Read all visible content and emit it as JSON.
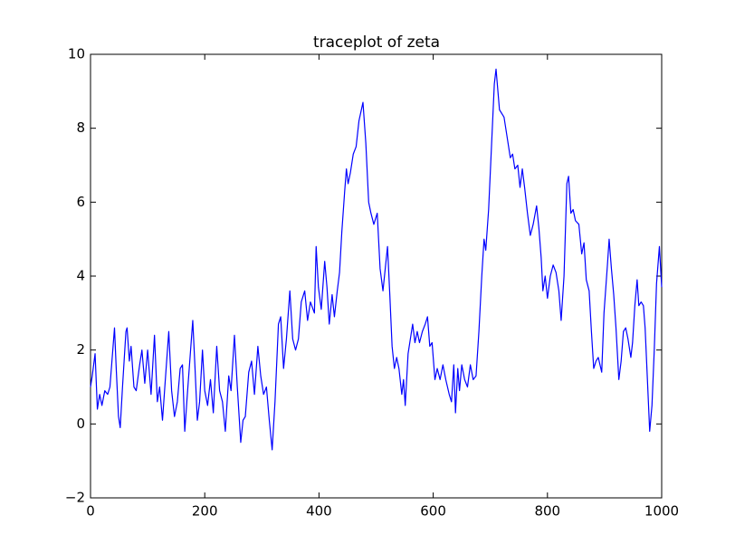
{
  "chart_data": {
    "type": "line",
    "title": "traceplot of zeta",
    "color": "#0000ff",
    "x": [
      0,
      3,
      8,
      12,
      16,
      20,
      25,
      30,
      34,
      42,
      45,
      49,
      52,
      56,
      62,
      64,
      68,
      71,
      76,
      80,
      86,
      90,
      95,
      100,
      106,
      112,
      117,
      121,
      126,
      131,
      137,
      142,
      147,
      152,
      157,
      161,
      165,
      170,
      179,
      183,
      187,
      191,
      196,
      200,
      205,
      210,
      215,
      221,
      226,
      231,
      236,
      242,
      246,
      252,
      257,
      263,
      267,
      271,
      277,
      282,
      287,
      293,
      298,
      303,
      308,
      313,
      318,
      323,
      329,
      333,
      338,
      343,
      349,
      354,
      359,
      364,
      369,
      375,
      380,
      385,
      392,
      395,
      399,
      404,
      410,
      414,
      418,
      423,
      427,
      432,
      436,
      440,
      445,
      448,
      451,
      455,
      460,
      465,
      470,
      477,
      482,
      487,
      491,
      496,
      502,
      507,
      512,
      516,
      520,
      524,
      528,
      532,
      536,
      540,
      545,
      548,
      551,
      556,
      564,
      568,
      572,
      576,
      581,
      586,
      590,
      594,
      598,
      603,
      607,
      612,
      617,
      622,
      628,
      632,
      636,
      639,
      643,
      646,
      650,
      655,
      660,
      665,
      670,
      675,
      680,
      685,
      689,
      692,
      697,
      702,
      707,
      710,
      716,
      724,
      729,
      735,
      739,
      743,
      748,
      752,
      756,
      760,
      765,
      770,
      775,
      781,
      785,
      789,
      792,
      796,
      800,
      805,
      810,
      815,
      820,
      824,
      829,
      834,
      837,
      841,
      845,
      849,
      855,
      860,
      864,
      868,
      873,
      877,
      881,
      885,
      889,
      892,
      895,
      899,
      905,
      908,
      912,
      916,
      920,
      925,
      929,
      933,
      937,
      941,
      946,
      949,
      953,
      957,
      960,
      964,
      968,
      971,
      975,
      979,
      983,
      987,
      991,
      996,
      1000
    ],
    "values": [
      1.0,
      1.3,
      1.9,
      0.4,
      0.8,
      0.5,
      0.9,
      0.8,
      1.0,
      2.6,
      1.5,
      0.2,
      -0.1,
      1.0,
      2.5,
      2.6,
      1.7,
      2.1,
      1.0,
      0.9,
      1.6,
      2.0,
      1.1,
      2.0,
      0.8,
      2.4,
      0.6,
      1.0,
      0.1,
      1.2,
      2.5,
      0.9,
      0.2,
      0.6,
      1.5,
      1.6,
      -0.2,
      0.9,
      2.8,
      1.5,
      0.1,
      0.6,
      2.0,
      0.9,
      0.5,
      1.2,
      0.3,
      2.1,
      0.9,
      0.6,
      -0.2,
      1.3,
      0.9,
      2.4,
      1.0,
      -0.5,
      0.1,
      0.2,
      1.4,
      1.7,
      0.8,
      2.1,
      1.3,
      0.8,
      1.0,
      0.1,
      -0.7,
      0.6,
      2.7,
      2.9,
      1.5,
      2.3,
      3.6,
      2.3,
      2.0,
      2.3,
      3.3,
      3.6,
      2.8,
      3.3,
      3.0,
      4.8,
      3.7,
      3.1,
      4.4,
      3.7,
      2.7,
      3.5,
      2.9,
      3.6,
      4.1,
      5.2,
      6.3,
      6.9,
      6.5,
      6.8,
      7.3,
      7.5,
      8.2,
      8.7,
      7.6,
      6.0,
      5.7,
      5.4,
      5.7,
      4.2,
      3.6,
      4.2,
      4.8,
      3.5,
      2.1,
      1.5,
      1.8,
      1.5,
      0.8,
      1.2,
      0.5,
      1.9,
      2.7,
      2.2,
      2.5,
      2.2,
      2.5,
      2.7,
      2.9,
      2.1,
      2.2,
      1.2,
      1.5,
      1.2,
      1.6,
      1.2,
      0.8,
      0.6,
      1.6,
      0.3,
      1.5,
      0.9,
      1.6,
      1.2,
      1.0,
      1.6,
      1.2,
      1.3,
      2.5,
      4.0,
      5.0,
      4.7,
      5.8,
      7.5,
      9.2,
      9.6,
      8.5,
      8.3,
      7.8,
      7.2,
      7.3,
      6.9,
      7.0,
      6.4,
      6.9,
      6.4,
      5.7,
      5.1,
      5.4,
      5.9,
      5.3,
      4.5,
      3.6,
      4.0,
      3.4,
      4.0,
      4.3,
      4.1,
      3.6,
      2.8,
      4.0,
      6.5,
      6.7,
      5.7,
      5.8,
      5.5,
      5.4,
      4.6,
      4.9,
      3.9,
      3.6,
      2.5,
      1.5,
      1.7,
      1.8,
      1.6,
      1.4,
      3.0,
      4.3,
      5.0,
      4.2,
      3.5,
      2.6,
      1.2,
      1.7,
      2.5,
      2.6,
      2.3,
      1.8,
      2.2,
      3.2,
      3.9,
      3.2,
      3.3,
      3.2,
      2.6,
      1.2,
      -0.2,
      0.5,
      2.0,
      3.8,
      4.8,
      3.7
    ],
    "xlim": [
      0,
      1000
    ],
    "xticks": [
      0,
      200,
      400,
      600,
      800,
      1000
    ],
    "ylim": [
      -2,
      10
    ],
    "yticks": [
      {
        "value": -2,
        "label": "−2"
      },
      0,
      2,
      4,
      6,
      8,
      10
    ]
  }
}
